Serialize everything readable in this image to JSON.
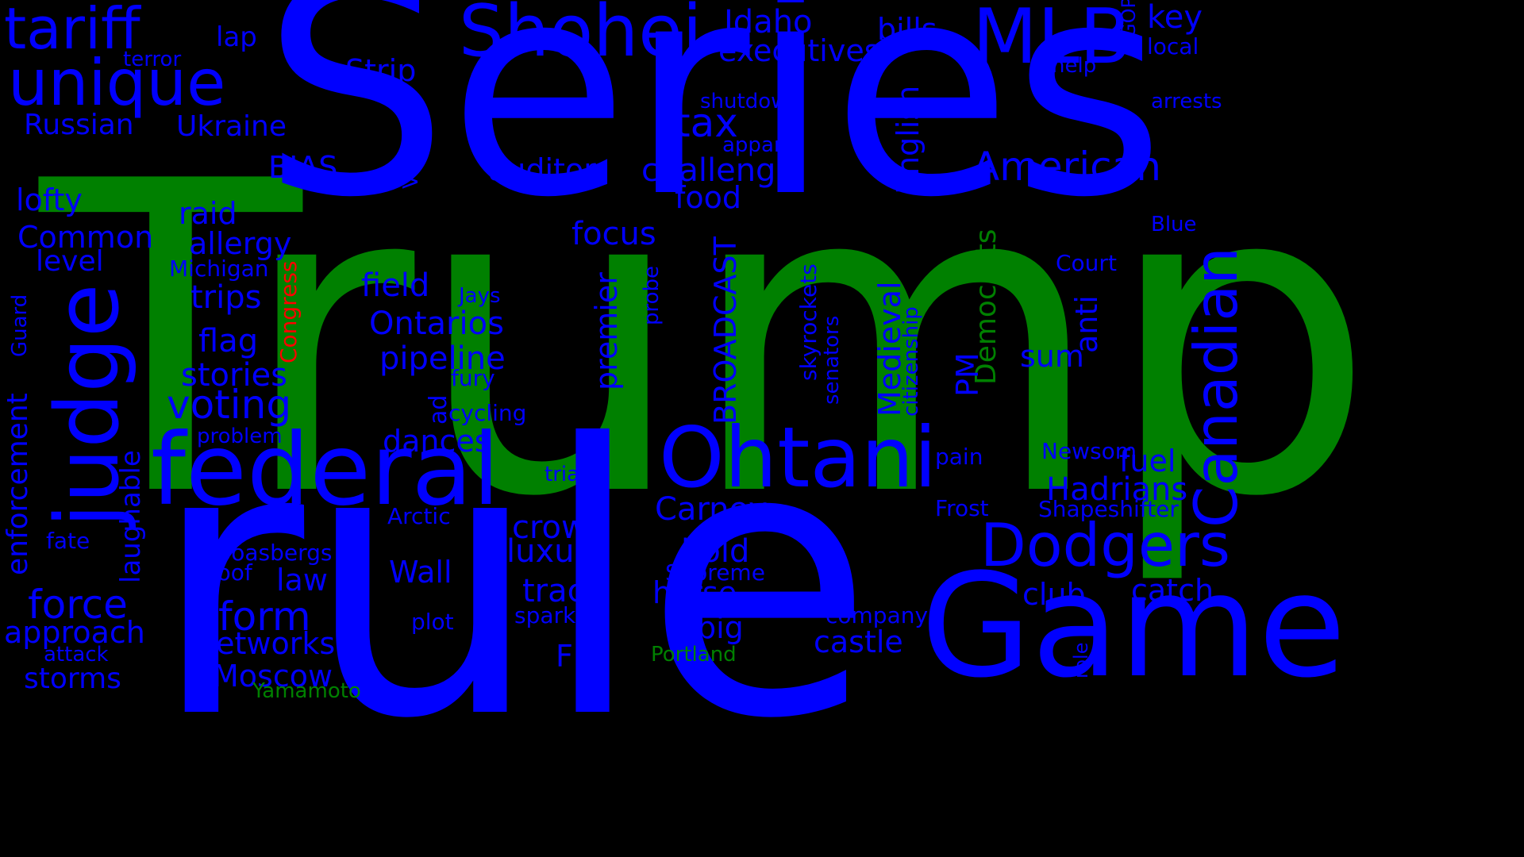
{
  "colors": {
    "background": "#000000",
    "primary": "#0000ff",
    "secondary": "#008000",
    "accent": "#ff0000"
  },
  "words": {
    "trump": "Trump",
    "rule": "rule",
    "series": "Series",
    "game": "Game",
    "ohtani": "Ohtani",
    "federal": "federal",
    "judge": "judge",
    "shohei": "Shohei",
    "mlb": "MLB",
    "dodgers": "Dodgers",
    "canadian": "Canadian",
    "unique": "unique",
    "tariff": "tariff",
    "american": "American",
    "democrats": "Democrats",
    "voting": "voting",
    "form": "form",
    "force": "force",
    "tax": "tax",
    "idaho": "Idaho",
    "key": "key",
    "bills": "bills",
    "executives": "executives",
    "strip": "Strip",
    "russian": "Russian",
    "ukraine": "Ukraine",
    "challenge": "challenge",
    "auditor": "auditor",
    "food": "food",
    "bias": "BIAS",
    "lofty": "lofty",
    "raid": "raid",
    "allergy": "allergy",
    "common": "Common",
    "level": "level",
    "focus": "focus",
    "field": "field",
    "trips": "trips",
    "ontarios": "Ontarios",
    "flag": "flag",
    "pipeline": "pipeline",
    "stories": "stories",
    "dances": "dances",
    "carney": "Carney",
    "crowd": "crowd",
    "luxury": "luxury",
    "bold": "bold",
    "hadrians": "Hadrians",
    "fuel": "fuel",
    "catch": "catch",
    "club": "club",
    "horse": "horse",
    "track": "track",
    "wall": "Wall",
    "law": "law",
    "big": "big",
    "networks": "networks",
    "castle": "castle",
    "approach": "approach",
    "fbi": "FBI",
    "moscow": "Moscow",
    "storms": "storms",
    "english": "English",
    "medieval": "Medieval",
    "broadcast": "BROADCAST",
    "premier": "premier",
    "sum": "sum",
    "anti": "anti",
    "pm": "PM",
    "enforcement": "enforcement",
    "laughable": "laughable",
    "congress": "Congress",
    "portland": "Portland",
    "yamamoto": "Yamamoto",
    "lap": "lap",
    "terror": "terror",
    "help": "help",
    "local": "local",
    "gop": "GOP",
    "shutdown": "shutdown",
    "apparel": "apparel",
    "arrests": "arrests",
    "blue": "Blue",
    "court": "Court",
    "vermont": "Vermont",
    "michigan": "Michigan",
    "jays": "Jays",
    "probe": "probe",
    "skyrockets": "skyrockets",
    "senators": "senators",
    "citizenship": "citizenship",
    "fury": "fury",
    "cycling": "cycling",
    "ad": "ad",
    "problem": "problem",
    "guard": "Guard",
    "trial": "trial",
    "pain": "pain",
    "newsom": "Newsom",
    "frost": "Frost",
    "shapeshifter": "Shapeshifter",
    "arctic": "Arctic",
    "fate": "fate",
    "boasbergs": "Boasbergs",
    "proof": "proof",
    "supreme": "Supreme",
    "company": "company",
    "plot": "plot",
    "sparks": "sparks",
    "attack": "attack",
    "role": "role"
  }
}
